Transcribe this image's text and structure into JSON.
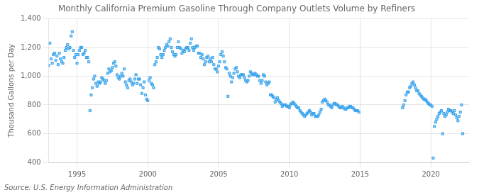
{
  "chart_data": {
    "type": "scatter",
    "title": "Monthly California Premium Gasoline Through Company Outlets Volume by Refiners",
    "ylabel": "Thousand Gallons per Day",
    "source": "Source: U.S. Energy Information Administration",
    "marker": "square",
    "grid": true,
    "xlim": [
      1993.0,
      2022.7
    ],
    "xticks": [
      1995,
      2000,
      2005,
      2010,
      2015,
      2020
    ],
    "ylim": [
      400,
      1400
    ],
    "yticks": [
      400,
      600,
      800,
      {
        "value": 1000,
        "label": "1,000"
      },
      {
        "value": 1200,
        "label": "1,200"
      },
      {
        "value": 1400,
        "label": "1,400"
      }
    ],
    "x": [
      1993.0,
      1993.083,
      1993.167,
      1993.25,
      1993.333,
      1993.417,
      1993.5,
      1993.583,
      1993.667,
      1993.75,
      1993.833,
      1993.917,
      1994.0,
      1994.083,
      1994.167,
      1994.25,
      1994.333,
      1994.417,
      1994.5,
      1994.583,
      1994.667,
      1994.75,
      1994.833,
      1994.917,
      1995.0,
      1995.083,
      1995.167,
      1995.25,
      1995.333,
      1995.417,
      1995.5,
      1995.583,
      1995.667,
      1995.75,
      1995.833,
      1995.917,
      1996.0,
      1996.083,
      1996.167,
      1996.25,
      1996.333,
      1996.417,
      1996.5,
      1996.583,
      1996.667,
      1996.75,
      1996.833,
      1996.917,
      1997.0,
      1997.083,
      1997.167,
      1997.25,
      1997.333,
      1997.417,
      1997.5,
      1997.583,
      1997.667,
      1997.75,
      1997.833,
      1997.917,
      1998.0,
      1998.083,
      1998.167,
      1998.25,
      1998.333,
      1998.417,
      1998.5,
      1998.583,
      1998.667,
      1998.75,
      1998.833,
      1998.917,
      1999.0,
      1999.083,
      1999.167,
      1999.25,
      1999.333,
      1999.417,
      1999.5,
      1999.583,
      1999.667,
      1999.75,
      1999.833,
      1999.917,
      2000.0,
      2000.083,
      2000.167,
      2000.25,
      2000.333,
      2000.417,
      2000.5,
      2000.583,
      2000.667,
      2000.75,
      2000.833,
      2000.917,
      2001.0,
      2001.083,
      2001.167,
      2001.25,
      2001.333,
      2001.417,
      2001.5,
      2001.583,
      2001.667,
      2001.75,
      2001.833,
      2001.917,
      2002.0,
      2002.083,
      2002.167,
      2002.25,
      2002.333,
      2002.417,
      2002.5,
      2002.583,
      2002.667,
      2002.75,
      2002.833,
      2002.917,
      2003.0,
      2003.083,
      2003.167,
      2003.25,
      2003.333,
      2003.417,
      2003.5,
      2003.583,
      2003.667,
      2003.75,
      2003.833,
      2003.917,
      2004.0,
      2004.083,
      2004.167,
      2004.25,
      2004.333,
      2004.417,
      2004.5,
      2004.583,
      2004.667,
      2004.75,
      2004.833,
      2004.917,
      2005.0,
      2005.083,
      2005.167,
      2005.25,
      2005.333,
      2005.417,
      2005.5,
      2005.583,
      2005.667,
      2005.75,
      2005.833,
      2005.917,
      2006.0,
      2006.083,
      2006.167,
      2006.25,
      2006.333,
      2006.417,
      2006.5,
      2006.583,
      2006.667,
      2006.75,
      2006.833,
      2006.917,
      2007.0,
      2007.083,
      2007.167,
      2007.25,
      2007.333,
      2007.417,
      2007.5,
      2007.583,
      2007.667,
      2007.75,
      2007.833,
      2007.917,
      2008.0,
      2008.083,
      2008.167,
      2008.25,
      2008.333,
      2008.417,
      2008.5,
      2008.583,
      2008.667,
      2008.75,
      2008.833,
      2008.917,
      2009.0,
      2009.083,
      2009.167,
      2009.25,
      2009.333,
      2009.417,
      2009.5,
      2009.583,
      2009.667,
      2009.75,
      2009.833,
      2009.917,
      2010.0,
      2010.083,
      2010.167,
      2010.25,
      2010.333,
      2010.417,
      2010.5,
      2010.583,
      2010.667,
      2010.75,
      2010.833,
      2010.917,
      2011.0,
      2011.083,
      2011.167,
      2011.25,
      2011.333,
      2011.417,
      2011.5,
      2011.583,
      2011.667,
      2011.75,
      2011.833,
      2011.917,
      2012.0,
      2012.083,
      2012.167,
      2012.25,
      2012.333,
      2012.417,
      2012.5,
      2012.583,
      2012.667,
      2012.75,
      2012.833,
      2012.917,
      2013.0,
      2013.083,
      2013.167,
      2013.25,
      2013.333,
      2013.417,
      2013.5,
      2013.583,
      2013.667,
      2013.75,
      2013.833,
      2013.917,
      2014.0,
      2014.083,
      2014.167,
      2014.25,
      2014.333,
      2014.417,
      2014.5,
      2014.583,
      2014.667,
      2014.75,
      2014.833,
      2014.917,
      2018.0,
      2018.083,
      2018.167,
      2018.25,
      2018.333,
      2018.417,
      2018.5,
      2018.583,
      2018.667,
      2018.75,
      2018.833,
      2018.917,
      2019.0,
      2019.083,
      2019.167,
      2019.25,
      2019.333,
      2019.417,
      2019.5,
      2019.583,
      2019.667,
      2019.75,
      2019.833,
      2019.917,
      2020.0,
      2020.083,
      2020.167,
      2020.25,
      2020.333,
      2020.417,
      2020.5,
      2020.583,
      2020.667,
      2020.75,
      2020.833,
      2020.917,
      2021.0,
      2021.083,
      2021.167,
      2021.25,
      2021.333,
      2021.417,
      2021.5,
      2021.583,
      2021.667,
      2021.75,
      2021.833,
      2021.917,
      2022.0,
      2022.083,
      2022.167,
      2022.25
    ],
    "values": [
      1075,
      1230,
      1120,
      1090,
      1150,
      1160,
      1110,
      1140,
      1080,
      1160,
      1120,
      1100,
      1090,
      1130,
      1180,
      1200,
      1220,
      1190,
      1200,
      1280,
      1310,
      1180,
      1130,
      1150,
      1090,
      1150,
      1180,
      1200,
      1200,
      1150,
      1160,
      1180,
      1130,
      1130,
      1100,
      760,
      870,
      920,
      980,
      1000,
      950,
      930,
      960,
      950,
      960,
      990,
      980,
      970,
      950,
      970,
      1020,
      1050,
      1030,
      1040,
      1060,
      1090,
      1100,
      1070,
      1010,
      990,
      980,
      1000,
      1020,
      1000,
      1050,
      960,
      940,
      920,
      970,
      980,
      960,
      940,
      950,
      980,
      1010,
      950,
      980,
      980,
      940,
      880,
      920,
      960,
      870,
      840,
      830,
      970,
      990,
      950,
      940,
      920,
      1080,
      1100,
      1130,
      1200,
      1190,
      1150,
      1130,
      1150,
      1180,
      1200,
      1220,
      1210,
      1240,
      1260,
      1200,
      1170,
      1150,
      1140,
      1150,
      1200,
      1240,
      1200,
      1190,
      1160,
      1180,
      1170,
      1190,
      1200,
      1200,
      1180,
      1230,
      1260,
      1200,
      1180,
      1200,
      1210,
      1210,
      1160,
      1160,
      1130,
      1150,
      1120,
      1080,
      1100,
      1130,
      1140,
      1100,
      1120,
      1100,
      1130,
      1080,
      1050,
      1050,
      1030,
      1070,
      1100,
      1150,
      1170,
      1140,
      1100,
      1060,
      1050,
      860,
      1020,
      1000,
      960,
      990,
      1020,
      1050,
      1060,
      1030,
      1000,
      990,
      1010,
      1010,
      1010,
      990,
      970,
      960,
      970,
      1000,
      1030,
      1020,
      1010,
      1010,
      1020,
      1010,
      1000,
      1000,
      970,
      950,
      970,
      1010,
      1000,
      960,
      940,
      950,
      960,
      870,
      870,
      860,
      850,
      820,
      840,
      850,
      830,
      820,
      810,
      790,
      800,
      800,
      800,
      790,
      790,
      780,
      800,
      810,
      820,
      810,
      800,
      790,
      780,
      780,
      760,
      750,
      740,
      730,
      720,
      730,
      740,
      750,
      760,
      750,
      730,
      740,
      740,
      720,
      720,
      720,
      730,
      750,
      770,
      820,
      830,
      840,
      830,
      820,
      800,
      800,
      790,
      780,
      800,
      810,
      810,
      800,
      800,
      790,
      780,
      780,
      790,
      780,
      770,
      770,
      780,
      780,
      790,
      790,
      780,
      780,
      770,
      760,
      760,
      760,
      750,
      780,
      800,
      830,
      870,
      890,
      890,
      920,
      930,
      950,
      960,
      940,
      920,
      900,
      900,
      880,
      870,
      860,
      850,
      840,
      840,
      830,
      820,
      810,
      800,
      800,
      790,
      430,
      650,
      680,
      700,
      720,
      740,
      750,
      760,
      600,
      740,
      720,
      730,
      750,
      770,
      760,
      760,
      750,
      740,
      760,
      730,
      710,
      690,
      720,
      750,
      800,
      600
    ]
  }
}
